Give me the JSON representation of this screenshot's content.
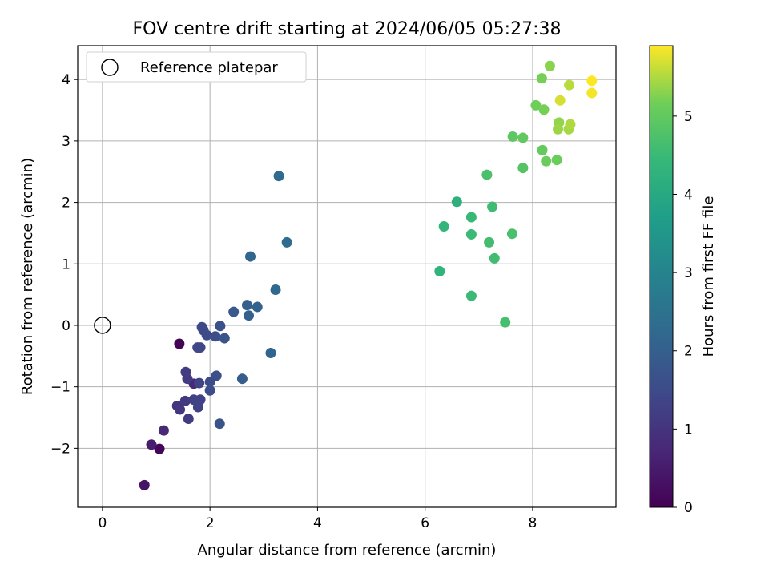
{
  "chart_data": {
    "type": "scatter",
    "title": "FOV centre drift starting at 2024/06/05 05:27:38",
    "xlabel": "Angular distance from reference (arcmin)",
    "ylabel": "Rotation from reference (arcmin)",
    "xlim": [
      -0.46,
      9.55
    ],
    "ylim": [
      -2.96,
      4.55
    ],
    "xticks": [
      0,
      2,
      4,
      6,
      8
    ],
    "yticks": [
      -2,
      -1,
      0,
      1,
      2,
      3,
      4
    ],
    "xtick_labels": [
      "0",
      "2",
      "4",
      "6",
      "8"
    ],
    "ytick_labels": [
      "−2",
      "−1",
      "0",
      "1",
      "2",
      "3",
      "4"
    ],
    "grid": true,
    "legend": {
      "placement": "top-left",
      "entries": [
        "Reference platepar"
      ]
    },
    "reference_point": {
      "x": 0,
      "y": 0
    },
    "colorbar": {
      "label": "Hours from first FF file",
      "range": [
        0,
        5.9
      ],
      "ticks": [
        0,
        1,
        2,
        3,
        4,
        5
      ],
      "tick_labels": [
        "0",
        "1",
        "2",
        "3",
        "4",
        "5"
      ],
      "colormap": "viridis"
    },
    "points": [
      {
        "x": 1.43,
        "y": -0.3,
        "c": 0.05
      },
      {
        "x": 1.06,
        "y": -2.01,
        "c": 0.1
      },
      {
        "x": 0.78,
        "y": -2.6,
        "c": 0.35
      },
      {
        "x": 0.91,
        "y": -1.94,
        "c": 0.55
      },
      {
        "x": 1.14,
        "y": -1.71,
        "c": 0.75
      },
      {
        "x": 1.7,
        "y": -0.95,
        "c": 0.8
      },
      {
        "x": 1.39,
        "y": -1.31,
        "c": 1.0
      },
      {
        "x": 1.44,
        "y": -1.37,
        "c": 1.05
      },
      {
        "x": 1.54,
        "y": -1.23,
        "c": 1.1
      },
      {
        "x": 1.6,
        "y": -1.52,
        "c": 1.15
      },
      {
        "x": 1.58,
        "y": -0.87,
        "c": 1.15
      },
      {
        "x": 1.55,
        "y": -0.76,
        "c": 1.2
      },
      {
        "x": 1.7,
        "y": -1.21,
        "c": 1.25
      },
      {
        "x": 1.78,
        "y": -1.33,
        "c": 1.3
      },
      {
        "x": 1.82,
        "y": -1.21,
        "c": 1.3
      },
      {
        "x": 1.8,
        "y": -0.94,
        "c": 1.35
      },
      {
        "x": 1.77,
        "y": -0.36,
        "c": 1.4
      },
      {
        "x": 1.82,
        "y": -0.36,
        "c": 1.4
      },
      {
        "x": 1.85,
        "y": -0.03,
        "c": 1.45
      },
      {
        "x": 1.88,
        "y": -0.08,
        "c": 1.45
      },
      {
        "x": 1.94,
        "y": -0.16,
        "c": 1.5
      },
      {
        "x": 2.0,
        "y": -0.92,
        "c": 1.5
      },
      {
        "x": 2.0,
        "y": -1.06,
        "c": 1.55
      },
      {
        "x": 2.12,
        "y": -0.82,
        "c": 1.6
      },
      {
        "x": 2.1,
        "y": -0.18,
        "c": 1.6
      },
      {
        "x": 2.19,
        "y": -0.01,
        "c": 1.65
      },
      {
        "x": 2.18,
        "y": -1.6,
        "c": 1.7
      },
      {
        "x": 2.27,
        "y": -0.21,
        "c": 1.75
      },
      {
        "x": 2.44,
        "y": 0.22,
        "c": 1.85
      },
      {
        "x": 2.6,
        "y": -0.87,
        "c": 1.95
      },
      {
        "x": 2.69,
        "y": 0.33,
        "c": 2.0
      },
      {
        "x": 2.72,
        "y": 0.16,
        "c": 2.05
      },
      {
        "x": 2.88,
        "y": 0.3,
        "c": 2.1
      },
      {
        "x": 3.13,
        "y": -0.45,
        "c": 2.15
      },
      {
        "x": 2.75,
        "y": 1.12,
        "c": 2.2
      },
      {
        "x": 3.22,
        "y": 0.58,
        "c": 2.25
      },
      {
        "x": 3.28,
        "y": 2.43,
        "c": 2.3
      },
      {
        "x": 3.43,
        "y": 1.35,
        "c": 2.35
      },
      {
        "x": 6.59,
        "y": 2.01,
        "c": 4.2
      },
      {
        "x": 6.27,
        "y": 0.88,
        "c": 4.3
      },
      {
        "x": 6.35,
        "y": 1.61,
        "c": 4.35
      },
      {
        "x": 6.86,
        "y": 1.76,
        "c": 4.45
      },
      {
        "x": 6.86,
        "y": 1.48,
        "c": 4.5
      },
      {
        "x": 6.86,
        "y": 0.48,
        "c": 4.5
      },
      {
        "x": 7.25,
        "y": 1.93,
        "c": 4.55
      },
      {
        "x": 7.19,
        "y": 1.35,
        "c": 4.6
      },
      {
        "x": 7.29,
        "y": 1.09,
        "c": 4.6
      },
      {
        "x": 7.49,
        "y": 0.05,
        "c": 4.65
      },
      {
        "x": 7.15,
        "y": 2.45,
        "c": 4.7
      },
      {
        "x": 7.62,
        "y": 1.49,
        "c": 4.7
      },
      {
        "x": 7.82,
        "y": 2.56,
        "c": 4.85
      },
      {
        "x": 7.63,
        "y": 3.07,
        "c": 4.95
      },
      {
        "x": 7.82,
        "y": 3.05,
        "c": 5.0
      },
      {
        "x": 8.18,
        "y": 2.85,
        "c": 5.05
      },
      {
        "x": 8.25,
        "y": 2.67,
        "c": 5.1
      },
      {
        "x": 8.45,
        "y": 2.69,
        "c": 5.1
      },
      {
        "x": 8.06,
        "y": 3.58,
        "c": 5.15
      },
      {
        "x": 8.21,
        "y": 3.51,
        "c": 5.2
      },
      {
        "x": 8.17,
        "y": 4.02,
        "c": 5.2
      },
      {
        "x": 8.32,
        "y": 4.22,
        "c": 5.3
      },
      {
        "x": 8.49,
        "y": 3.3,
        "c": 5.35
      },
      {
        "x": 8.47,
        "y": 3.19,
        "c": 5.4
      },
      {
        "x": 8.67,
        "y": 3.19,
        "c": 5.45
      },
      {
        "x": 8.7,
        "y": 3.27,
        "c": 5.5
      },
      {
        "x": 8.68,
        "y": 3.91,
        "c": 5.55
      },
      {
        "x": 8.51,
        "y": 3.66,
        "c": 5.7
      },
      {
        "x": 9.1,
        "y": 3.78,
        "c": 5.85
      },
      {
        "x": 9.1,
        "y": 3.98,
        "c": 5.9
      }
    ]
  }
}
